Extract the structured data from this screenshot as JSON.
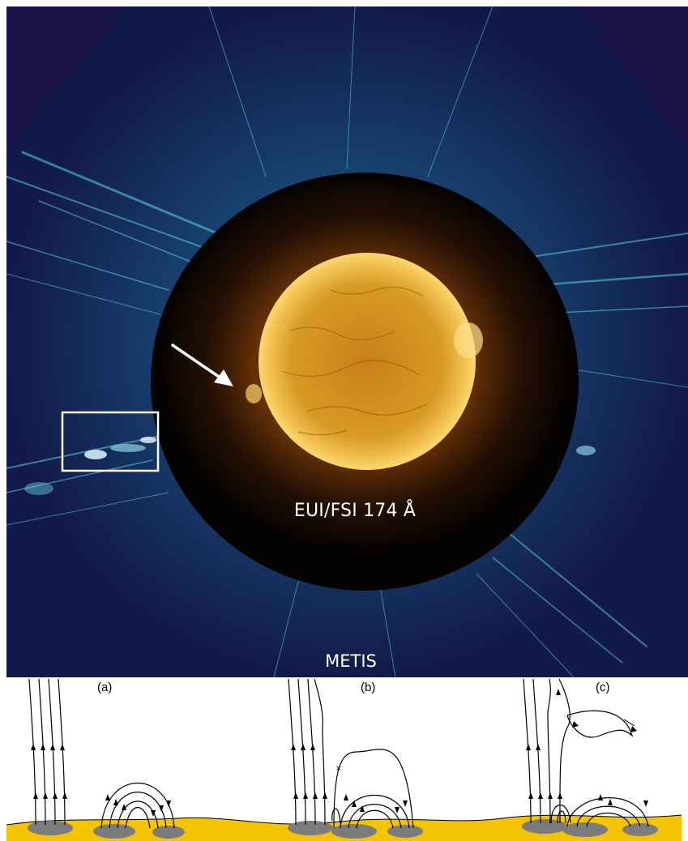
{
  "figure": {
    "labels": {
      "inner_instrument": "EUI/FSI 174 Å",
      "outer_instrument": "METIS"
    },
    "panels": [
      {
        "label": "(a)"
      },
      {
        "label": "(b)"
      },
      {
        "label": "(c)"
      }
    ],
    "colors": {
      "corona_background": "#1a1446",
      "corona_streamers": "#5fd0e6",
      "sun_disk": "#d8961a",
      "photosphere": "#f4c400",
      "footpoints": "#7c7c7c"
    }
  }
}
